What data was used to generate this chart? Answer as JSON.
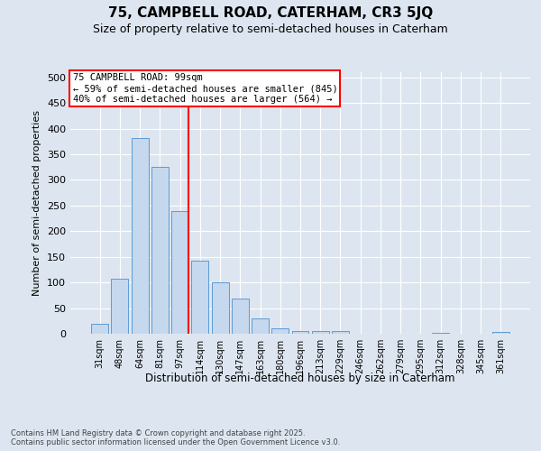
{
  "title1": "75, CAMPBELL ROAD, CATERHAM, CR3 5JQ",
  "title2": "Size of property relative to semi-detached houses in Caterham",
  "xlabel": "Distribution of semi-detached houses by size in Caterham",
  "ylabel": "Number of semi-detached properties",
  "categories": [
    "31sqm",
    "48sqm",
    "64sqm",
    "81sqm",
    "97sqm",
    "114sqm",
    "130sqm",
    "147sqm",
    "163sqm",
    "180sqm",
    "196sqm",
    "213sqm",
    "229sqm",
    "246sqm",
    "262sqm",
    "279sqm",
    "295sqm",
    "312sqm",
    "328sqm",
    "345sqm",
    "361sqm"
  ],
  "values": [
    20,
    107,
    382,
    325,
    240,
    142,
    101,
    68,
    30,
    10,
    5,
    6,
    6,
    0,
    0,
    0,
    0,
    2,
    0,
    0,
    3
  ],
  "bar_color": "#c5d8ed",
  "bar_edge_color": "#5b9bd5",
  "vline_bin_index": 4,
  "vline_color": "red",
  "annotation_title": "75 CAMPBELL ROAD: 99sqm",
  "annotation_line1": "← 59% of semi-detached houses are smaller (845)",
  "annotation_line2": "40% of semi-detached houses are larger (564) →",
  "annotation_box_color": "white",
  "annotation_box_edge_color": "red",
  "ylim": [
    0,
    510
  ],
  "yticks": [
    0,
    50,
    100,
    150,
    200,
    250,
    300,
    350,
    400,
    450,
    500
  ],
  "footer1": "Contains HM Land Registry data © Crown copyright and database right 2025.",
  "footer2": "Contains public sector information licensed under the Open Government Licence v3.0.",
  "bg_color": "#dde6f0",
  "plot_bg_color": "#dde6f0",
  "grid_color": "#ffffff",
  "title1_fontsize": 11,
  "title2_fontsize": 9
}
